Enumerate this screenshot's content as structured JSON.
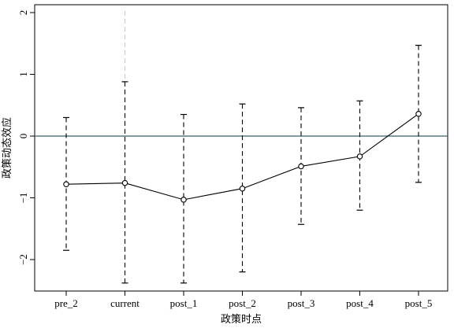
{
  "chart_data": {
    "type": "line",
    "title": "",
    "xlabel": "政策时点",
    "ylabel": "政策动态效应",
    "categories": [
      "pre_2",
      "current",
      "post_1",
      "post_2",
      "post_3",
      "post_4",
      "post_5"
    ],
    "estimate": [
      -0.78,
      -0.76,
      -1.03,
      -0.85,
      -0.49,
      -0.33,
      0.36
    ],
    "ci_lower": [
      -1.85,
      -2.38,
      -2.38,
      -2.2,
      -1.43,
      -1.2,
      -0.75
    ],
    "ci_upper": [
      0.3,
      0.88,
      0.35,
      0.52,
      0.46,
      0.57,
      1.47
    ],
    "ylim": [
      -2.5,
      2.1
    ],
    "yticks": [
      -2,
      -1,
      0,
      1,
      2
    ],
    "reference_hline": 0,
    "reference_vline_category": "current",
    "grid": false,
    "legend": "none",
    "colors": {
      "series": "#000000",
      "zero_line": "#3c5f6b",
      "reference_vline": "#c8c8c8"
    }
  }
}
